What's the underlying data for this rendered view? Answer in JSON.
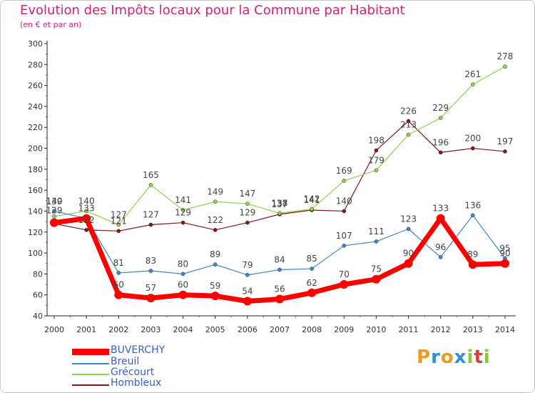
{
  "title": "Evolution des Impôts locaux pour la Commune par Habitant",
  "subtitle": "(en € et par an)",
  "logo": {
    "letters": [
      "P",
      "r",
      "o",
      "x",
      "i",
      "t",
      "i"
    ],
    "colors": [
      "#f29a1f",
      "#2f8fd3",
      "#f29a1f",
      "#2f8fd3",
      "#8cc63e",
      "#e2383e",
      "#8cc63e"
    ]
  },
  "chart_data": {
    "type": "line",
    "x": [
      "2000",
      "2001",
      "2002",
      "2003",
      "2004",
      "2005",
      "2006",
      "2007",
      "2008",
      "2009",
      "2010",
      "2011",
      "2012",
      "2013",
      "2014"
    ],
    "ylim": [
      40,
      300
    ],
    "yticks": [
      "40",
      "60",
      "80",
      "100",
      "120",
      "140",
      "160",
      "180",
      "200",
      "220",
      "240",
      "260",
      "280",
      "300"
    ],
    "grid": false,
    "legend_placement": "bottom-left",
    "series": [
      {
        "name": "Hombleux",
        "color": "#7a1a1a",
        "width": 1.2,
        "marker": 2.6,
        "values": [
          128,
          122,
          121,
          127,
          129,
          122,
          129,
          137,
          141,
          140,
          198,
          226,
          196,
          200,
          197
        ],
        "labels": [
          "",
          "122",
          "121",
          "127",
          "129",
          "122",
          "129",
          "137",
          "141",
          "140",
          "198",
          "226",
          "196",
          "200",
          "197"
        ]
      },
      {
        "name": "Grécourt",
        "color": "#8ed34c",
        "width": 1.2,
        "marker": 2.6,
        "values": [
          135,
          140,
          127,
          165,
          141,
          149,
          147,
          138,
          142,
          169,
          179,
          213,
          229,
          261,
          278
        ],
        "labels": [
          "",
          "140",
          "127",
          "165",
          "141",
          "149",
          "147",
          "138",
          "142",
          "169",
          "179",
          "213",
          "229",
          "261",
          "278"
        ]
      },
      {
        "name": "Breuil",
        "color": "#3f86c6",
        "width": 1.2,
        "marker": 2.6,
        "values": [
          140,
          133,
          81,
          83,
          80,
          89,
          79,
          84,
          85,
          107,
          111,
          123,
          96,
          136,
          95
        ],
        "labels": [
          "140",
          "133",
          "81",
          "83",
          "80",
          "89",
          "79",
          "84",
          "85",
          "107",
          "111",
          "123",
          "96",
          "136",
          "95"
        ]
      },
      {
        "name": "BUVERCHY",
        "color": "#ff0000",
        "width": 7,
        "marker": 6,
        "values": [
          129,
          133,
          60,
          57,
          60,
          59,
          54,
          56,
          62,
          70,
          75,
          90,
          133,
          89,
          90
        ],
        "labels": [
          "",
          "",
          "60",
          "57",
          "60",
          "59",
          "54",
          "56",
          "62",
          "70",
          "75",
          "90",
          "133",
          "89",
          "90"
        ]
      }
    ],
    "extra_labels": [
      "139",
      "137",
      "129"
    ],
    "legend_order": [
      "BUVERCHY",
      "Breuil",
      "Grécourt",
      "Hombleux"
    ]
  }
}
